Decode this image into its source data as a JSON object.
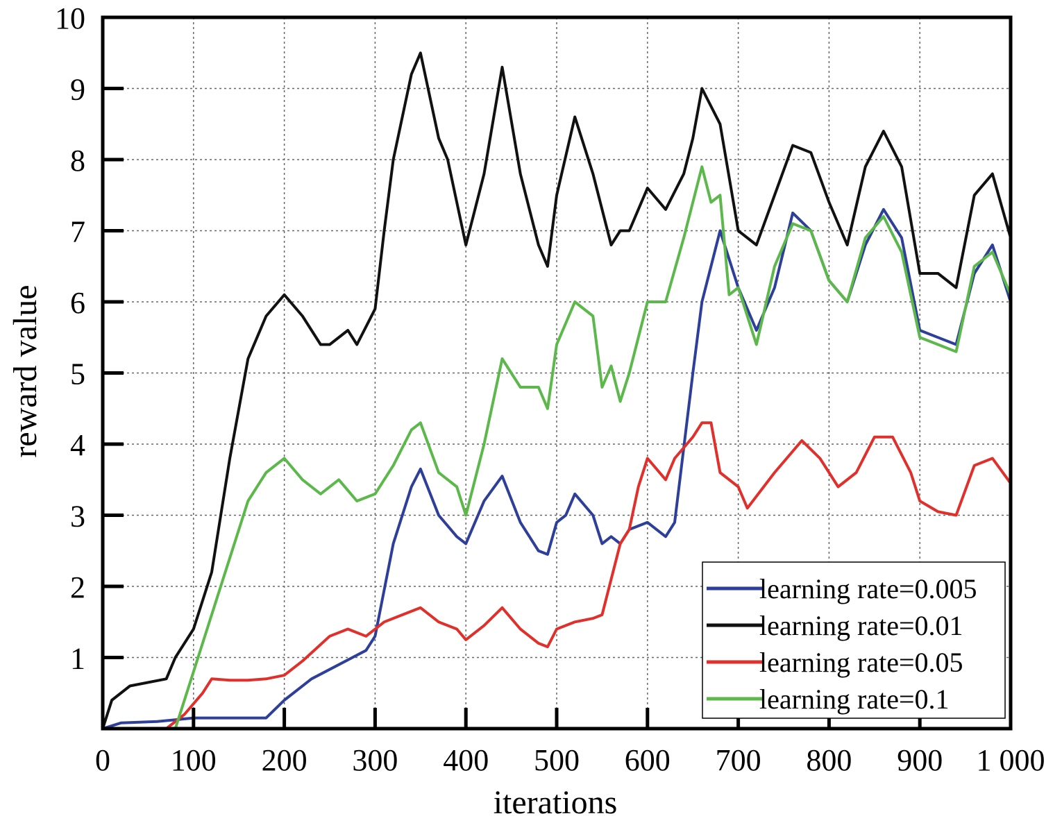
{
  "chart_data": {
    "type": "line",
    "title": "",
    "xlabel": "iterations",
    "ylabel": "reward value",
    "xlim": [
      0,
      1000
    ],
    "ylim": [
      0,
      10
    ],
    "xticks": [
      0,
      100,
      200,
      300,
      400,
      500,
      600,
      700,
      800,
      900,
      1000
    ],
    "xtick_labels": [
      "0",
      "100",
      "200",
      "300",
      "400",
      "500",
      "600",
      "700",
      "800",
      "900",
      "1 000"
    ],
    "yticks": [
      1,
      2,
      3,
      4,
      5,
      6,
      7,
      8,
      9,
      10
    ],
    "ytick_labels": [
      "1",
      "2",
      "3",
      "4",
      "5",
      "6",
      "7",
      "8",
      "9",
      "10"
    ],
    "grid": true,
    "legend_position": "bottom-right",
    "series": [
      {
        "name": "learning rate=0.005",
        "color": "#2e3f9a",
        "x": [
          0,
          20,
          60,
          100,
          140,
          180,
          200,
          230,
          260,
          290,
          300,
          320,
          340,
          350,
          370,
          390,
          400,
          420,
          440,
          460,
          480,
          490,
          500,
          510,
          520,
          540,
          550,
          560,
          570,
          580,
          600,
          620,
          630,
          650,
          660,
          680,
          700,
          720,
          740,
          760,
          780,
          800,
          820,
          840,
          860,
          880,
          900,
          920,
          940,
          960,
          980,
          1000
        ],
        "y": [
          0,
          0.08,
          0.1,
          0.15,
          0.15,
          0.15,
          0.4,
          0.7,
          0.9,
          1.1,
          1.3,
          2.6,
          3.4,
          3.65,
          3.0,
          2.7,
          2.6,
          3.2,
          3.55,
          2.9,
          2.5,
          2.45,
          2.9,
          3.0,
          3.3,
          3.0,
          2.6,
          2.7,
          2.6,
          2.8,
          2.9,
          2.7,
          2.9,
          5.0,
          6.0,
          7.0,
          6.2,
          5.6,
          6.2,
          7.25,
          7.0,
          6.3,
          6.0,
          6.8,
          7.3,
          6.9,
          5.6,
          5.5,
          5.4,
          6.4,
          6.8,
          6.0
        ]
      },
      {
        "name": "learning rate=0.01",
        "color": "#111111",
        "x": [
          0,
          10,
          30,
          70,
          80,
          100,
          120,
          140,
          160,
          180,
          200,
          220,
          240,
          250,
          270,
          280,
          300,
          310,
          320,
          340,
          350,
          370,
          380,
          400,
          420,
          440,
          460,
          480,
          490,
          500,
          520,
          540,
          560,
          570,
          580,
          600,
          620,
          640,
          650,
          660,
          680,
          700,
          720,
          740,
          760,
          780,
          800,
          820,
          840,
          860,
          880,
          900,
          920,
          940,
          960,
          980,
          1000
        ],
        "y": [
          0,
          0.4,
          0.6,
          0.7,
          1.0,
          1.4,
          2.2,
          3.8,
          5.2,
          5.8,
          6.1,
          5.8,
          5.4,
          5.4,
          5.6,
          5.4,
          5.9,
          7.0,
          8.0,
          9.2,
          9.5,
          8.3,
          8.0,
          6.8,
          7.8,
          9.3,
          7.8,
          6.8,
          6.5,
          7.5,
          8.6,
          7.8,
          6.8,
          7.0,
          7.0,
          7.6,
          7.3,
          7.8,
          8.3,
          9.0,
          8.5,
          7.0,
          6.8,
          7.5,
          8.2,
          8.1,
          7.4,
          6.8,
          7.9,
          8.4,
          7.9,
          6.4,
          6.4,
          6.2,
          7.5,
          7.8,
          6.9
        ]
      },
      {
        "name": "learning rate=0.05",
        "color": "#e0302b",
        "x": [
          0,
          70,
          90,
          110,
          120,
          140,
          160,
          180,
          200,
          220,
          250,
          270,
          290,
          310,
          330,
          350,
          370,
          390,
          400,
          420,
          440,
          460,
          480,
          490,
          500,
          520,
          540,
          550,
          560,
          570,
          580,
          590,
          600,
          620,
          630,
          650,
          660,
          670,
          680,
          700,
          710,
          740,
          770,
          790,
          810,
          830,
          850,
          870,
          890,
          900,
          920,
          940,
          960,
          980,
          1000
        ],
        "y": [
          0,
          0,
          0.2,
          0.5,
          0.7,
          0.68,
          0.68,
          0.7,
          0.75,
          0.95,
          1.3,
          1.4,
          1.3,
          1.5,
          1.6,
          1.7,
          1.5,
          1.4,
          1.25,
          1.45,
          1.7,
          1.4,
          1.2,
          1.15,
          1.4,
          1.5,
          1.55,
          1.6,
          2.1,
          2.6,
          2.8,
          3.4,
          3.8,
          3.5,
          3.8,
          4.1,
          4.3,
          4.3,
          3.6,
          3.4,
          3.1,
          3.6,
          4.05,
          3.8,
          3.4,
          3.6,
          4.1,
          4.1,
          3.6,
          3.2,
          3.05,
          3.0,
          3.7,
          3.8,
          3.45
        ]
      },
      {
        "name": "learning rate=0.1",
        "color": "#5cb84a",
        "x": [
          0,
          80,
          100,
          130,
          160,
          180,
          200,
          220,
          240,
          260,
          280,
          300,
          320,
          340,
          350,
          370,
          390,
          400,
          420,
          440,
          460,
          480,
          490,
          500,
          520,
          540,
          550,
          560,
          570,
          580,
          600,
          620,
          640,
          650,
          660,
          670,
          680,
          690,
          700,
          720,
          740,
          760,
          780,
          800,
          820,
          840,
          860,
          880,
          900,
          920,
          940,
          960,
          980,
          1000
        ],
        "y": [
          0,
          0,
          0.8,
          2.0,
          3.2,
          3.6,
          3.8,
          3.5,
          3.3,
          3.5,
          3.2,
          3.3,
          3.7,
          4.2,
          4.3,
          3.6,
          3.4,
          3.0,
          4.0,
          5.2,
          4.8,
          4.8,
          4.5,
          5.4,
          6.0,
          5.8,
          4.8,
          5.1,
          4.6,
          5.0,
          6.0,
          6.0,
          6.9,
          7.4,
          7.9,
          7.4,
          7.5,
          6.1,
          6.2,
          5.4,
          6.5,
          7.1,
          7.0,
          6.3,
          6.0,
          6.9,
          7.2,
          6.7,
          5.5,
          5.4,
          5.3,
          6.5,
          6.7,
          6.1
        ]
      }
    ]
  }
}
